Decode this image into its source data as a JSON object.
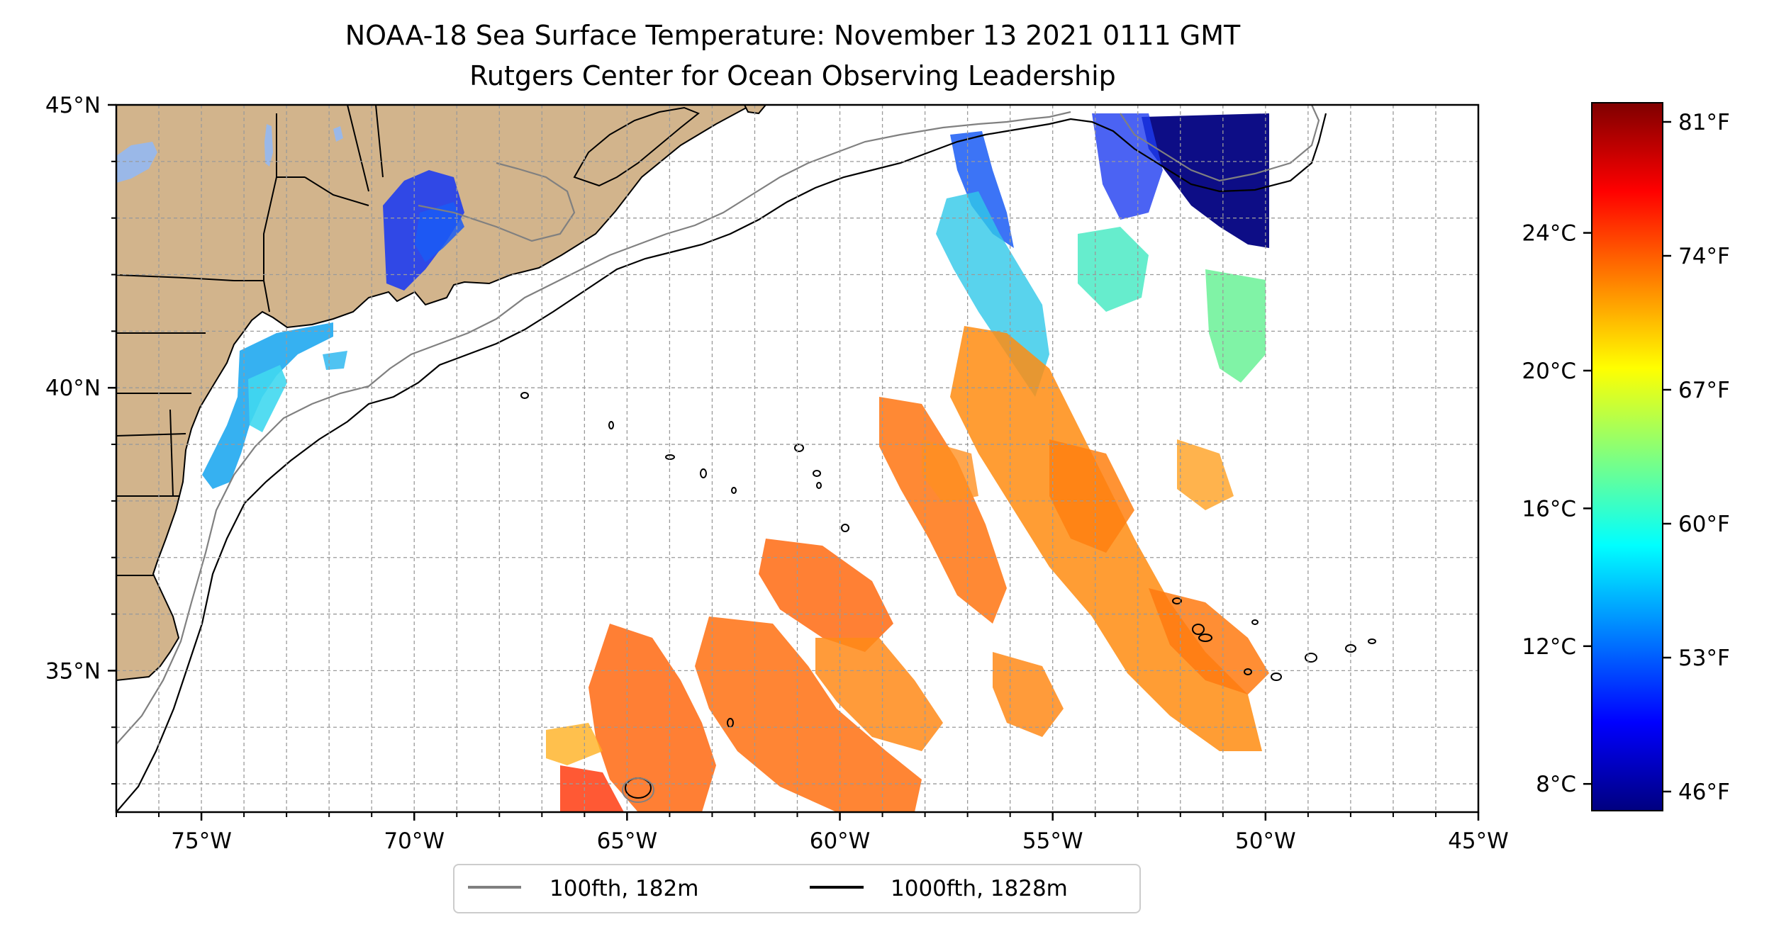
{
  "figure": {
    "title": "NOAA-18 Sea Surface Temperature: November 13 2021 0111 GMT",
    "subtitle": "Rutgers Center for Ocean Observing Leadership"
  },
  "map": {
    "lon_range": [
      -77,
      -45
    ],
    "lat_range": [
      32.5,
      45
    ],
    "x_tick_labels": [
      {
        "lon": -75,
        "label": "75°W"
      },
      {
        "lon": -70,
        "label": "70°W"
      },
      {
        "lon": -65,
        "label": "65°W"
      },
      {
        "lon": -60,
        "label": "60°W"
      },
      {
        "lon": -55,
        "label": "55°W"
      },
      {
        "lon": -50,
        "label": "50°W"
      },
      {
        "lon": -45,
        "label": "45°W"
      }
    ],
    "y_tick_labels": [
      {
        "lat": 45,
        "label": "45°N"
      },
      {
        "lat": 40,
        "label": "40°N"
      },
      {
        "lat": 35,
        "label": "35°N"
      }
    ],
    "gridlines": true,
    "colors": {
      "land": "#d2b48c",
      "lakes": "#9ab8e8",
      "contour_100": "#808080",
      "contour_1000": "#000000"
    }
  },
  "legend": {
    "position": "bottom-center",
    "items": [
      {
        "label": "100fth, 182m",
        "color": "#808080"
      },
      {
        "label": "1000fth, 1828m",
        "color": "#000000"
      }
    ]
  },
  "colorbar": {
    "colormap": "jet",
    "range_f": [
      45,
      82
    ],
    "celsius_ticks": [
      {
        "c": 8,
        "label": "8°C"
      },
      {
        "c": 12,
        "label": "12°C"
      },
      {
        "c": 16,
        "label": "16°C"
      },
      {
        "c": 20,
        "label": "20°C"
      },
      {
        "c": 24,
        "label": "24°C"
      }
    ],
    "fahrenheit_ticks": [
      {
        "f": 46,
        "label": "46°F"
      },
      {
        "f": 53,
        "label": "53°F"
      },
      {
        "f": 60,
        "label": "60°F"
      },
      {
        "f": 67,
        "label": "67°F"
      },
      {
        "f": 74,
        "label": "74°F"
      },
      {
        "f": 81,
        "label": "81°F"
      }
    ]
  }
}
